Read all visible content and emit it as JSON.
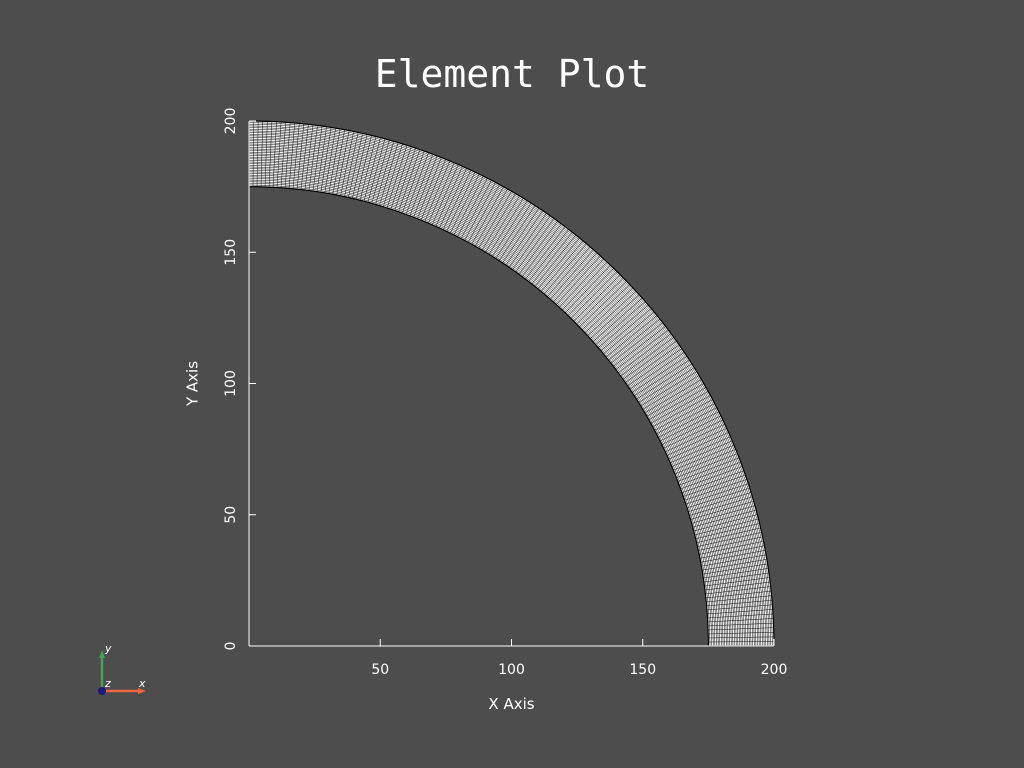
{
  "title": "Element Plot",
  "colors": {
    "background": "#4d4d4d",
    "mesh_fill": "#f2f2f2",
    "mesh_edges": "#000000",
    "axis": "#ffffff",
    "orient_x": "#e8673b",
    "orient_y": "#3fa35c",
    "orient_z": "#1a1a80"
  },
  "orientation_widget": {
    "x_label": "x",
    "y_label": "y",
    "z_label": "z"
  },
  "chart_data": {
    "type": "mesh",
    "title": "Element Plot",
    "xlabel": "X Axis",
    "ylabel": "Y Axis",
    "xlim": [
      0,
      200
    ],
    "ylim": [
      0,
      200
    ],
    "x_ticks": [
      50,
      100,
      150,
      200
    ],
    "y_ticks": [
      0,
      50,
      100,
      150,
      200
    ],
    "grid": false,
    "shape": "quarter annulus",
    "inner_radius": 175,
    "outer_radius": 200,
    "angle_range_deg": [
      0,
      90
    ],
    "radial_divisions": 40,
    "angular_divisions": 180
  }
}
